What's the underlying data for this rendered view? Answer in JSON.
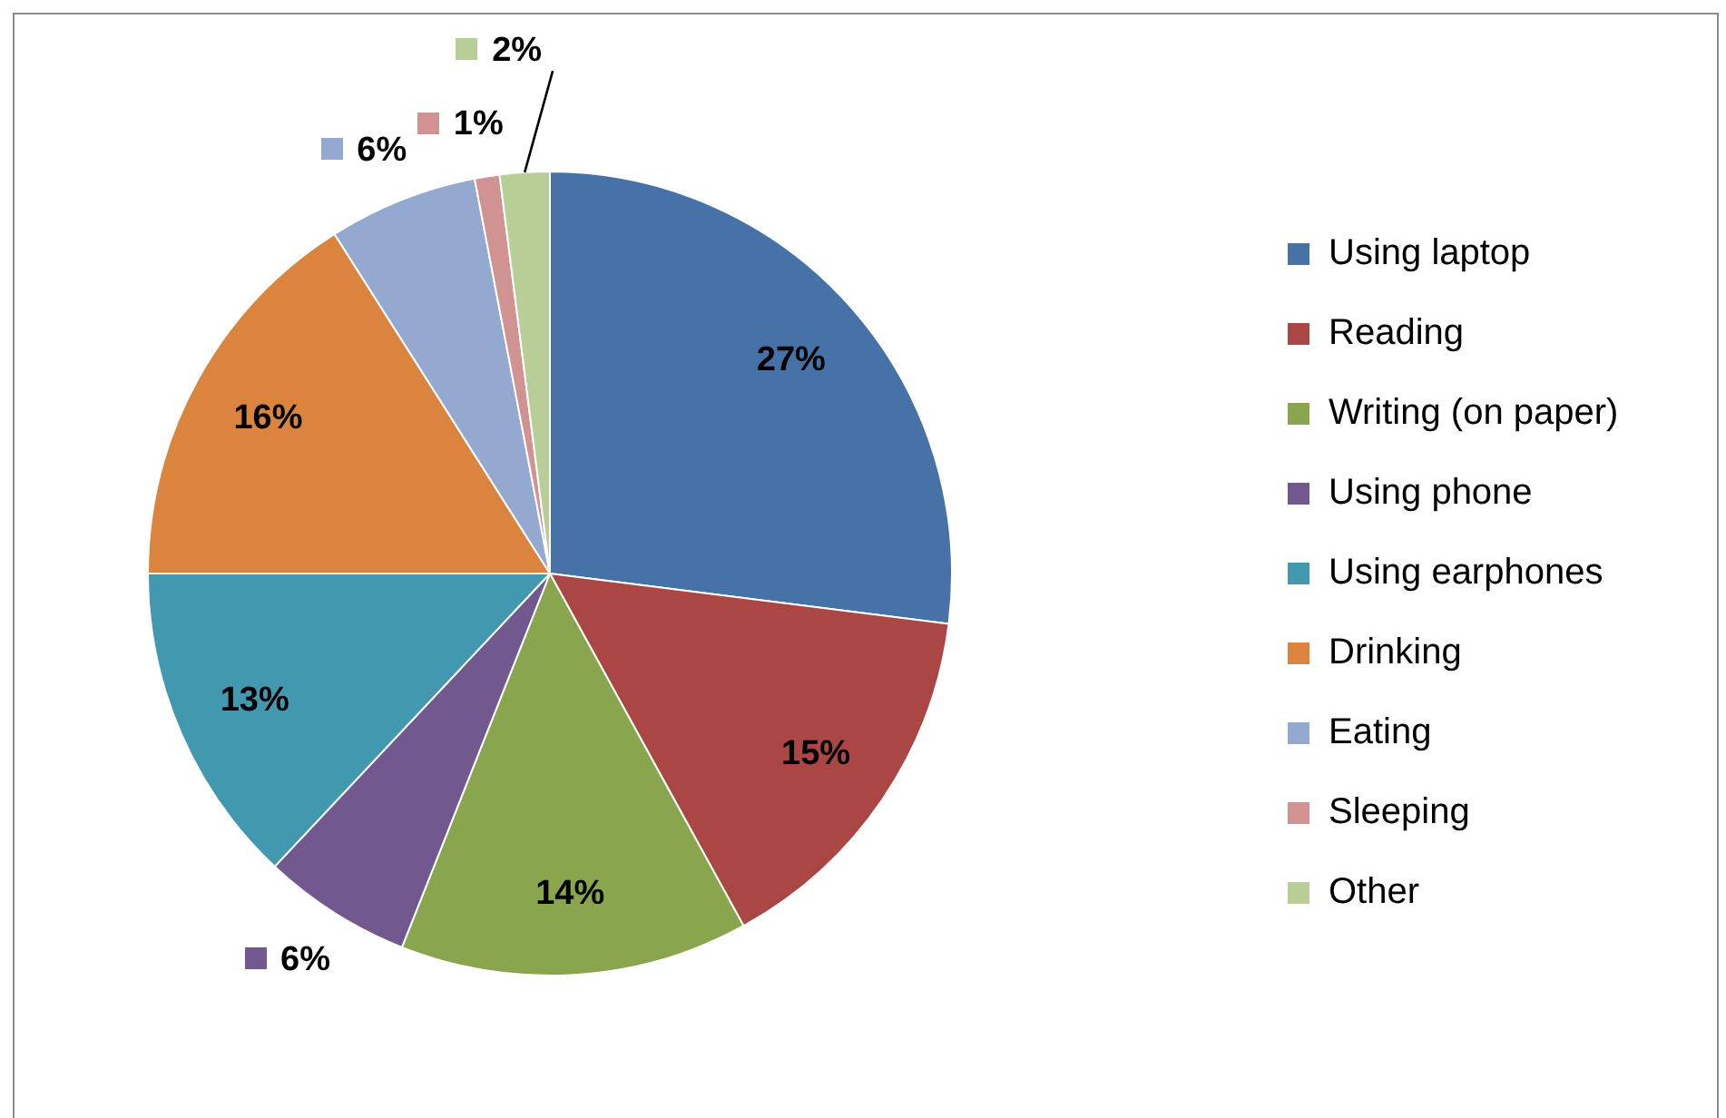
{
  "chart_data": {
    "type": "pie",
    "categories": [
      "Using laptop",
      "Reading",
      "Writing (on paper)",
      "Using phone",
      "Using earphones",
      "Drinking",
      "Eating",
      "Sleeping",
      "Other"
    ],
    "values": [
      27,
      15,
      14,
      6,
      13,
      16,
      6,
      1,
      2
    ],
    "value_labels": [
      "27%",
      "15%",
      "14%",
      "6%",
      "13%",
      "16%",
      "6%",
      "1%",
      "2%"
    ],
    "colors": [
      "#4672a8",
      "#aa4643",
      "#89a54e",
      "#71588f",
      "#4198af",
      "#db843d",
      "#93a9cf",
      "#d19392",
      "#b9cd96"
    ],
    "legend": "right"
  }
}
